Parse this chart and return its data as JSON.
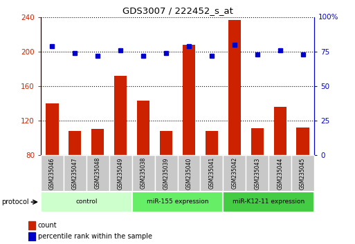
{
  "title": "GDS3007 / 222452_s_at",
  "samples": [
    "GSM235046",
    "GSM235047",
    "GSM235048",
    "GSM235049",
    "GSM235038",
    "GSM235039",
    "GSM235040",
    "GSM235041",
    "GSM235042",
    "GSM235043",
    "GSM235044",
    "GSM235045"
  ],
  "count_values": [
    140,
    108,
    110,
    172,
    143,
    108,
    208,
    108,
    237,
    111,
    136,
    112
  ],
  "percentile_values": [
    79,
    74,
    72,
    76,
    72,
    74,
    79,
    72,
    80,
    73,
    76,
    73
  ],
  "groups": [
    {
      "label": "control",
      "start": 0,
      "end": 4,
      "color": "#ccffcc"
    },
    {
      "label": "miR-155 expression",
      "start": 4,
      "end": 8,
      "color": "#66ee66"
    },
    {
      "label": "miR-K12-11 expression",
      "start": 8,
      "end": 12,
      "color": "#44cc44"
    }
  ],
  "ylim_left": [
    80,
    240
  ],
  "ylim_right": [
    0,
    100
  ],
  "yticks_left": [
    80,
    120,
    160,
    200,
    240
  ],
  "yticks_right": [
    0,
    25,
    50,
    75
  ],
  "ytick_right_labels": [
    "0",
    "25",
    "50",
    "75"
  ],
  "bar_color": "#cc2200",
  "dot_color": "#0000cc",
  "bar_width": 0.55,
  "legend_items": [
    {
      "label": "count",
      "color": "#cc2200"
    },
    {
      "label": "percentile rank within the sample",
      "color": "#0000cc"
    }
  ],
  "protocol_label": "protocol",
  "background_color": "#ffffff",
  "plot_bg_color": "#ffffff",
  "sample_box_color": "#c8c8c8"
}
